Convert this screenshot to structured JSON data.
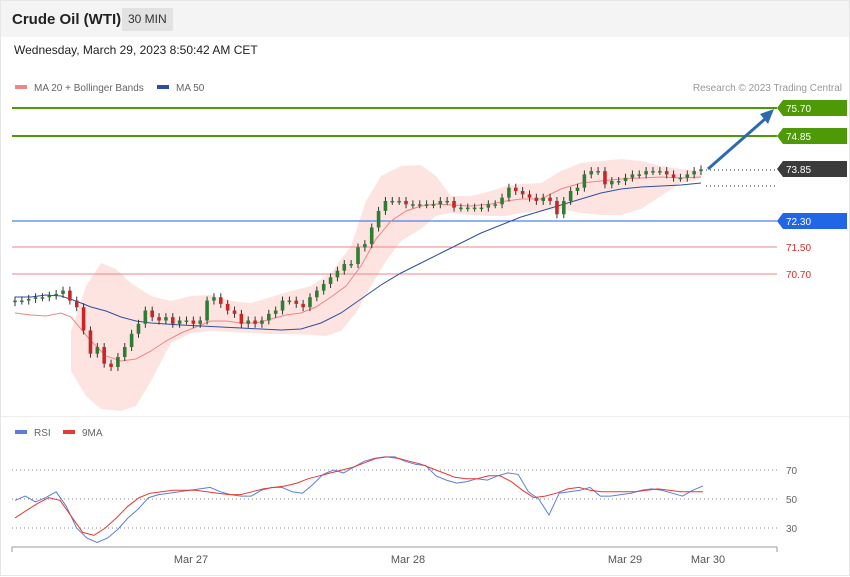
{
  "header": {
    "title": "Crude Oil (WTI)",
    "timeframe": "30 MIN"
  },
  "timestamp": "Wednesday, March 29, 2023 8:50:42 AM CET",
  "legend": {
    "ma20": "MA 20 + Bollinger Bands",
    "ma50": "MA 50"
  },
  "credit": "Research © 2023 Trading Central",
  "rsi_legend": {
    "rsi": "RSI",
    "ma": "9MA"
  },
  "colors": {
    "green": "#4d9a06",
    "blue": "#2266e8",
    "red_line": "#f08585",
    "dark": "#3b3b3b",
    "bollinger": "#fde4e1",
    "ma20": "#f08585",
    "ma50": "#2d4fa2",
    "candle_up": "#2e7d32",
    "candle_down": "#c62828",
    "arrow": "#2c6bb0",
    "rsi": "#5b7fd8",
    "rsi_ma": "#e53935"
  },
  "chart_data": [
    {
      "type": "candlestick",
      "title": "Crude Oil (WTI)",
      "timeframe": "30 MIN",
      "x_ticks": [
        "Mar 27",
        "Mar 28",
        "Mar 29",
        "Mar 30"
      ],
      "ylim": [
        68.6,
        76.2
      ],
      "levels": [
        {
          "value": 75.7,
          "label": "75.70",
          "style": "green-line"
        },
        {
          "value": 74.85,
          "label": "74.85",
          "style": "green-line"
        },
        {
          "value": 73.85,
          "label": "73.85",
          "style": "last-price"
        },
        {
          "value": 72.3,
          "label": "72.30",
          "style": "blue-line"
        },
        {
          "value": 71.5,
          "label": "71.50",
          "style": "red-line"
        },
        {
          "value": 70.7,
          "label": "70.70",
          "style": "red-line"
        }
      ],
      "forecast_arrow": {
        "from": 73.85,
        "to": 75.7
      },
      "close_approx": [
        69.9,
        69.9,
        69.95,
        70.0,
        70.0,
        70.05,
        70.1,
        70.2,
        69.9,
        69.7,
        69.0,
        68.3,
        68.5,
        68.0,
        67.9,
        68.2,
        68.5,
        68.9,
        69.2,
        69.6,
        69.4,
        69.3,
        69.4,
        69.2,
        69.3,
        69.3,
        69.2,
        69.3,
        69.9,
        70.0,
        69.8,
        69.6,
        69.5,
        69.2,
        69.3,
        69.2,
        69.3,
        69.5,
        69.6,
        69.9,
        69.9,
        69.8,
        69.7,
        70.0,
        70.2,
        70.4,
        70.6,
        70.8,
        71.0,
        71.0,
        71.5,
        71.6,
        72.1,
        72.6,
        72.9,
        72.9,
        72.9,
        72.8,
        72.8,
        72.8,
        72.8,
        72.8,
        72.9,
        72.9,
        72.7,
        72.7,
        72.7,
        72.7,
        72.7,
        72.8,
        72.8,
        73.0,
        73.3,
        73.2,
        73.1,
        73.0,
        72.9,
        73.0,
        72.9,
        72.5,
        72.9,
        73.2,
        73.3,
        73.7,
        73.8,
        73.8,
        73.4,
        73.5,
        73.5,
        73.6,
        73.7,
        73.7,
        73.8,
        73.8,
        73.8,
        73.7,
        73.6,
        73.6,
        73.7,
        73.8,
        73.85
      ],
      "rsi": {
        "levels": [
          70,
          50,
          30
        ],
        "ylim": [
          17,
          85
        ],
        "rsi_approx": [
          49,
          52,
          48,
          51,
          55,
          45,
          30,
          23,
          20,
          23,
          29,
          37,
          43,
          51,
          53,
          54,
          55,
          56,
          57,
          58,
          55,
          53,
          52,
          52,
          56,
          58,
          58,
          55,
          54,
          60,
          67,
          70,
          68,
          72,
          76,
          78,
          79,
          79,
          76,
          74,
          73,
          66,
          63,
          61,
          62,
          64,
          63,
          66,
          68,
          67,
          55,
          50,
          39,
          54,
          55,
          56,
          58,
          52,
          52,
          53,
          54,
          56,
          57,
          56,
          54,
          52,
          56,
          59
        ],
        "ma_approx": [
          37,
          42,
          47,
          51,
          49,
          38,
          27,
          25,
          30,
          37,
          45,
          51,
          54,
          55,
          56,
          56,
          56,
          55,
          54,
          53,
          53,
          55,
          57,
          58,
          59,
          61,
          64,
          66,
          68,
          70,
          72,
          75,
          78,
          79,
          78,
          76,
          74,
          71,
          68,
          65,
          64,
          64,
          66,
          66,
          62,
          56,
          51,
          52,
          54,
          57,
          58,
          56,
          55,
          55,
          55,
          55,
          56,
          57,
          56,
          55,
          55,
          55
        ]
      }
    }
  ]
}
